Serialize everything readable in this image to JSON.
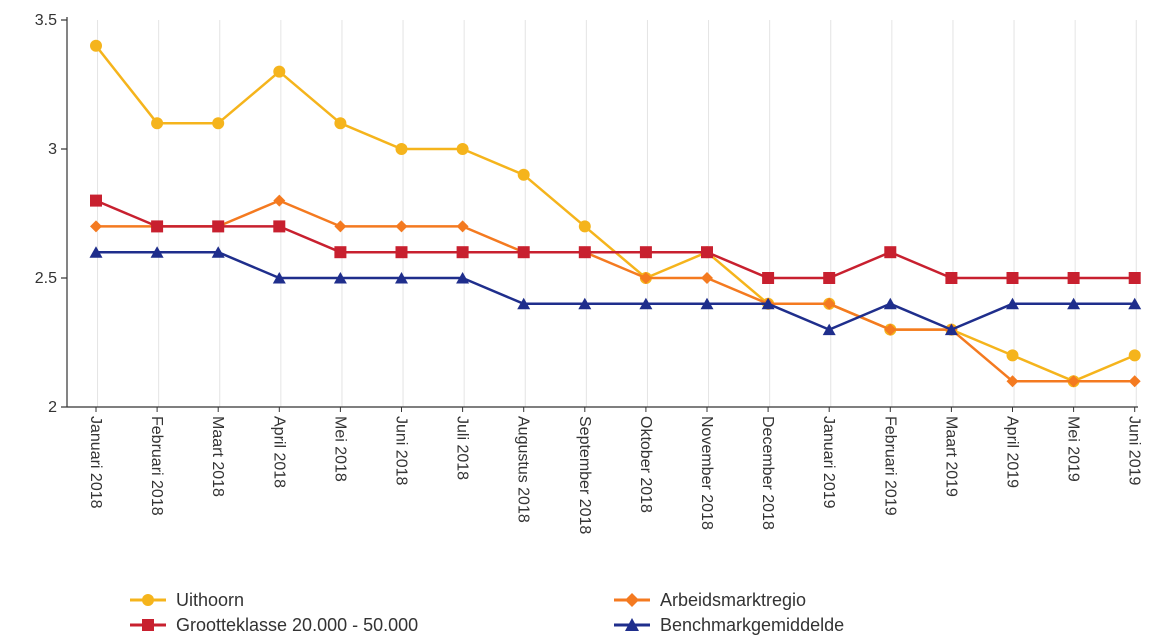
{
  "chart_data": {
    "type": "line",
    "categories": [
      "Januari 2018",
      "Februari 2018",
      "Maart 2018",
      "April 2018",
      "Mei 2018",
      "Juni 2018",
      "Juli 2018",
      "Augustus 2018",
      "September 2018",
      "Oktober 2018",
      "November 2018",
      "December 2018",
      "Januari 2019",
      "Februari 2019",
      "Maart 2019",
      "April 2019",
      "Mei 2019",
      "Juni 2019"
    ],
    "ylim": [
      2,
      3.5
    ],
    "yticks": [
      2,
      2.5,
      3,
      3.5
    ],
    "ytick_labels": [
      "2",
      "2.5",
      "3",
      "3.5"
    ],
    "grid": "vertical",
    "legend_position": "bottom",
    "series": [
      {
        "name": "Uithoorn",
        "color": "#F5B41C",
        "marker": "circle",
        "values": [
          3.4,
          3.1,
          3.1,
          3.3,
          3.1,
          3.0,
          3.0,
          2.9,
          2.7,
          2.5,
          2.6,
          2.4,
          2.4,
          2.3,
          2.3,
          2.2,
          2.1,
          2.2
        ]
      },
      {
        "name": "Arbeidsmarktregio",
        "color": "#F47A20",
        "marker": "diamond",
        "values": [
          2.7,
          2.7,
          2.7,
          2.8,
          2.7,
          2.7,
          2.7,
          2.6,
          2.6,
          2.5,
          2.5,
          2.4,
          2.4,
          2.3,
          2.3,
          2.1,
          2.1,
          2.1
        ]
      },
      {
        "name": "Grootteklasse 20.000 - 50.000",
        "color": "#C8202F",
        "marker": "square",
        "values": [
          2.8,
          2.7,
          2.7,
          2.7,
          2.6,
          2.6,
          2.6,
          2.6,
          2.6,
          2.6,
          2.6,
          2.5,
          2.5,
          2.6,
          2.5,
          2.5,
          2.5,
          2.5
        ]
      },
      {
        "name": "Benchmarkgemiddelde",
        "color": "#1F2E8C",
        "marker": "triangle",
        "values": [
          2.6,
          2.6,
          2.6,
          2.5,
          2.5,
          2.5,
          2.5,
          2.4,
          2.4,
          2.4,
          2.4,
          2.4,
          2.3,
          2.4,
          2.3,
          2.4,
          2.4,
          2.4
        ]
      }
    ]
  },
  "legend": [
    {
      "label": "Uithoorn",
      "color": "#F5B41C",
      "marker": "circle"
    },
    {
      "label": "Grootteklasse 20.000 - 50.000",
      "color": "#C8202F",
      "marker": "square"
    },
    {
      "label": "Arbeidsmarktregio",
      "color": "#F47A20",
      "marker": "diamond"
    },
    {
      "label": "Benchmarkgemiddelde",
      "color": "#1F2E8C",
      "marker": "triangle"
    }
  ]
}
